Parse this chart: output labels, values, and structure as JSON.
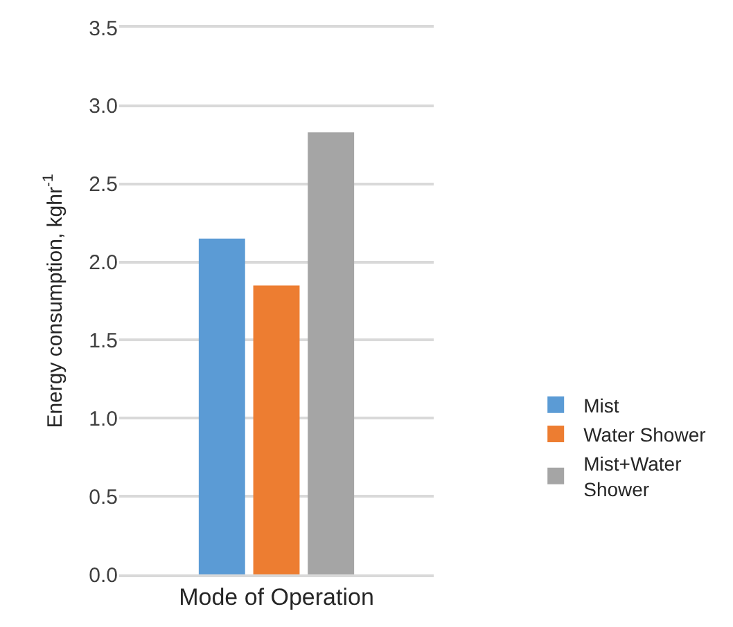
{
  "chart_data": {
    "type": "bar",
    "ylabel": "Energy consumption, kghr$^{-1}$",
    "categories": [
      "Mode of Operation"
    ],
    "series": [
      {
        "name": "Mist",
        "color": "#5b9bd5",
        "values": [
          2.15
        ]
      },
      {
        "name": "Water Shower",
        "color": "#ed7d31",
        "values": [
          1.85
        ]
      },
      {
        "name": "Mist+Water Shower",
        "color": "#a5a5a5",
        "values": [
          2.83
        ]
      }
    ],
    "ylim": [
      0,
      3.5
    ],
    "yticks": [
      {
        "value": 0,
        "label": "0.0"
      },
      0.5,
      {
        "value": 1,
        "label": "1.0"
      },
      1.5,
      {
        "value": 2,
        "label": "2.0"
      },
      2.5,
      {
        "value": 3,
        "label": "3.0"
      },
      3.5
    ],
    "grid": "y",
    "legend": "right"
  }
}
